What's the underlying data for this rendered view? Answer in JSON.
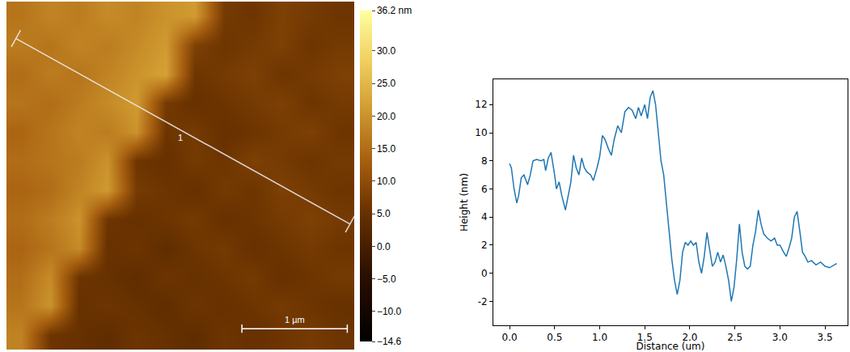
{
  "chart_data": [
    {
      "type": "heatmap",
      "xlim": [
        0,
        3.3
      ],
      "ylim": [
        0,
        3.3
      ],
      "tick_labels": false,
      "cells": [
        [
          16,
          18,
          17,
          19,
          18,
          20,
          21,
          7,
          6,
          8,
          7,
          6
        ],
        [
          17,
          16,
          18,
          17,
          19,
          21,
          8,
          6,
          7,
          8,
          6,
          7
        ],
        [
          15,
          17,
          16,
          18,
          20,
          22,
          6,
          7,
          8,
          6,
          7,
          8
        ],
        [
          16,
          15,
          17,
          19,
          21,
          7,
          5,
          6,
          7,
          8,
          6,
          7
        ],
        [
          14,
          16,
          18,
          17,
          20,
          6,
          7,
          5,
          6,
          7,
          8,
          6
        ],
        [
          15,
          16,
          17,
          20,
          6,
          5,
          7,
          6,
          8,
          7,
          6,
          7
        ],
        [
          14,
          15,
          18,
          21,
          7,
          6,
          5,
          7,
          6,
          8,
          7,
          6
        ],
        [
          15,
          17,
          20,
          6,
          5,
          6,
          7,
          5,
          6,
          7,
          8,
          7
        ],
        [
          14,
          16,
          19,
          5,
          6,
          4,
          6,
          7,
          5,
          6,
          7,
          6
        ],
        [
          15,
          19,
          6,
          5,
          4,
          6,
          5,
          6,
          7,
          5,
          6,
          7
        ],
        [
          16,
          20,
          5,
          6,
          5,
          4,
          6,
          5,
          6,
          7,
          6,
          5
        ],
        [
          18,
          6,
          5,
          4,
          6,
          5,
          4,
          6,
          5,
          6,
          7,
          6
        ]
      ],
      "colorbar": {
        "range": [
          -14.6,
          36.2
        ],
        "ticks": [
          {
            "value": 36.2,
            "label": "36.2 nm"
          },
          {
            "value": 30,
            "label": "30.0"
          },
          {
            "value": 25,
            "label": "25.0"
          },
          {
            "value": 20,
            "label": "20.0"
          },
          {
            "value": 15,
            "label": "15.0"
          },
          {
            "value": 10,
            "label": "10.0"
          },
          {
            "value": 5,
            "label": "5.0"
          },
          {
            "value": 0,
            "label": "0.0"
          },
          {
            "value": -5,
            "label": "−5.0"
          },
          {
            "value": -10,
            "label": "−10.0"
          },
          {
            "value": -14.6,
            "label": "−14.6"
          }
        ]
      },
      "scan_line": {
        "x": [
          0.09,
          3.26
        ],
        "y": [
          0.35,
          2.11
        ],
        "label": "1",
        "label_x": 1.65,
        "label_y": 1.29
      },
      "scale_bar": {
        "length": 1,
        "label": "1 µm"
      }
    },
    {
      "type": "line",
      "x_label": "Distance (um)",
      "y_label": "Height (nm)",
      "color": "#1f77b4",
      "grid": false,
      "xlim": [
        -0.18,
        3.75
      ],
      "ylim": [
        -3.7,
        13.8
      ],
      "xticks": [
        {
          "value": 0,
          "label": "0.0"
        },
        {
          "value": 0.5,
          "label": "0.5"
        },
        {
          "value": 1,
          "label": "1.0"
        },
        {
          "value": 1.5,
          "label": "1.5"
        },
        {
          "value": 2,
          "label": "2.0"
        },
        {
          "value": 2.5,
          "label": "2.5"
        },
        {
          "value": 3,
          "label": "3.0"
        },
        {
          "value": 3.5,
          "label": "3.5"
        }
      ],
      "yticks": [
        -2,
        0,
        2,
        4,
        6,
        8,
        10,
        12
      ],
      "x": [
        0.0,
        0.02,
        0.05,
        0.08,
        0.1,
        0.13,
        0.16,
        0.2,
        0.23,
        0.26,
        0.3,
        0.35,
        0.38,
        0.4,
        0.43,
        0.46,
        0.5,
        0.52,
        0.55,
        0.58,
        0.62,
        0.65,
        0.68,
        0.71,
        0.74,
        0.77,
        0.8,
        0.83,
        0.86,
        0.9,
        0.93,
        0.97,
        1.0,
        1.03,
        1.06,
        1.1,
        1.13,
        1.16,
        1.2,
        1.24,
        1.28,
        1.32,
        1.36,
        1.4,
        1.43,
        1.46,
        1.5,
        1.53,
        1.56,
        1.59,
        1.62,
        1.65,
        1.68,
        1.71,
        1.74,
        1.77,
        1.8,
        1.83,
        1.86,
        1.89,
        1.92,
        1.95,
        1.98,
        2.01,
        2.04,
        2.07,
        2.1,
        2.13,
        2.16,
        2.19,
        2.22,
        2.25,
        2.28,
        2.31,
        2.34,
        2.37,
        2.4,
        2.43,
        2.46,
        2.49,
        2.52,
        2.55,
        2.58,
        2.61,
        2.64,
        2.67,
        2.7,
        2.73,
        2.76,
        2.79,
        2.82,
        2.86,
        2.9,
        2.94,
        2.97,
        3.0,
        3.04,
        3.07,
        3.1,
        3.13,
        3.16,
        3.19,
        3.22,
        3.25,
        3.28,
        3.31,
        3.35,
        3.4,
        3.45,
        3.5,
        3.55,
        3.6,
        3.63
      ],
      "values": [
        7.8,
        7.5,
        6.0,
        5.0,
        5.5,
        6.8,
        7.0,
        6.3,
        7.0,
        8.0,
        8.1,
        8.0,
        8.1,
        7.3,
        8.2,
        8.6,
        7.0,
        6.0,
        6.5,
        5.5,
        4.5,
        5.5,
        6.5,
        8.4,
        7.5,
        7.0,
        8.2,
        7.5,
        7.2,
        7.0,
        6.6,
        7.5,
        8.3,
        9.8,
        9.5,
        8.8,
        8.4,
        9.5,
        10.5,
        10.0,
        11.5,
        11.8,
        11.6,
        11.0,
        11.8,
        11.2,
        12.0,
        11.0,
        12.5,
        13.0,
        12.0,
        10.0,
        8.0,
        7.0,
        5.0,
        3.0,
        1.0,
        -0.5,
        -1.5,
        -0.5,
        1.5,
        2.2,
        2.0,
        2.3,
        2.0,
        2.2,
        0.8,
        0.0,
        1.2,
        2.9,
        1.8,
        0.5,
        0.8,
        1.5,
        0.8,
        1.3,
        0.5,
        -0.5,
        -2.0,
        -1.0,
        1.0,
        3.5,
        1.5,
        0.5,
        0.3,
        0.5,
        2.0,
        3.0,
        4.5,
        3.5,
        2.8,
        2.5,
        2.3,
        2.5,
        2.0,
        2.0,
        1.5,
        1.2,
        1.8,
        2.5,
        4.0,
        4.4,
        3.0,
        1.5,
        1.2,
        0.8,
        0.9,
        0.6,
        0.8,
        0.5,
        0.4,
        0.6,
        0.7
      ]
    }
  ]
}
